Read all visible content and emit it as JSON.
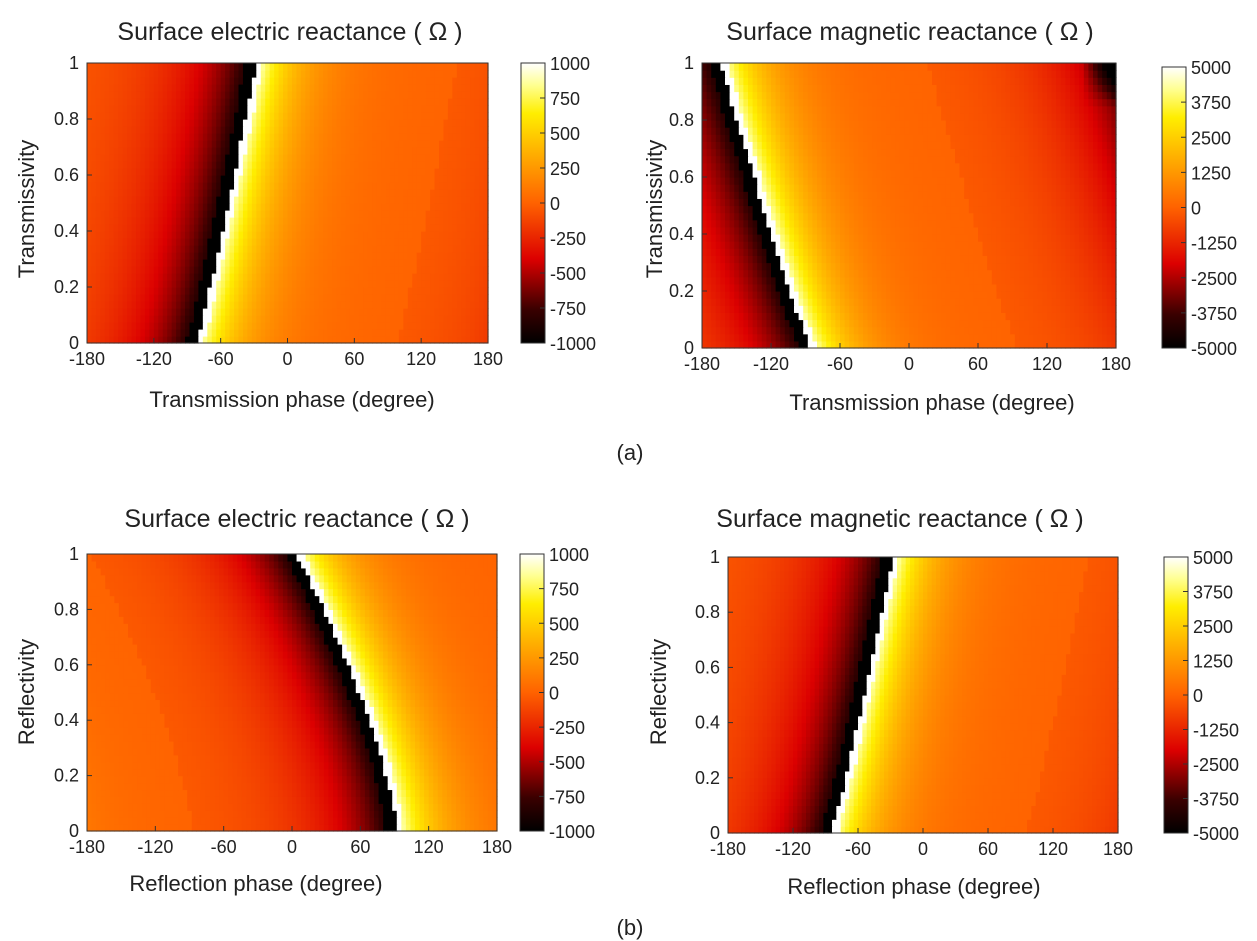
{
  "captions": [
    "(a)",
    "(b)"
  ],
  "colorbars": {
    "electric": {
      "ticks": [
        "1000",
        "750",
        "500",
        "250",
        "0",
        "-250",
        "-500",
        "-750",
        "-1000"
      ],
      "range": [
        -1000,
        1000
      ]
    },
    "magnetic": {
      "ticks": [
        "5000",
        "3750",
        "2500",
        "1250",
        "0",
        "-1250",
        "-2500",
        "-3750",
        "-5000"
      ],
      "range": [
        -5000,
        5000
      ]
    }
  },
  "colormap": {
    "stops": [
      {
        "v": 0.0,
        "color": "#000000"
      },
      {
        "v": 0.12,
        "color": "#3a0000"
      },
      {
        "v": 0.3,
        "color": "#dc0000"
      },
      {
        "v": 0.5,
        "color": "#ff6200"
      },
      {
        "v": 0.68,
        "color": "#ffb000"
      },
      {
        "v": 0.82,
        "color": "#ffee00"
      },
      {
        "v": 0.92,
        "color": "#ffff90"
      },
      {
        "v": 1.0,
        "color": "#ffffff"
      }
    ]
  },
  "chart_data": [
    {
      "type": "heatmap",
      "title": "Surface electric reactance ( Ω )",
      "xlabel": "Transmission phase (degree)",
      "ylabel": "Transmissivity",
      "xlim": [
        -180,
        180
      ],
      "ylim": [
        0,
        1
      ],
      "xticks": [
        "-180",
        "-120",
        "-60",
        "0",
        "60",
        "120",
        "180"
      ],
      "yticks": [
        "0",
        "0.2",
        "0.4",
        "0.6",
        "0.8",
        "1"
      ],
      "colorbar": "electric",
      "singularity_phase_at_y0": -82,
      "singularity_phase_at_y1": -28,
      "values_sample": [
        {
          "x": -180,
          "y": 0.5,
          "z": -250
        },
        {
          "x": -100,
          "y": 0.5,
          "z": -900
        },
        {
          "x": -40,
          "y": 0.5,
          "z": 800
        },
        {
          "x": 180,
          "y": 0.5,
          "z": 0
        }
      ]
    },
    {
      "type": "heatmap",
      "title": "Surface magnetic reactance ( Ω )",
      "xlabel": "Transmission phase (degree)",
      "ylabel": "Transmissivity",
      "xlim": [
        -180,
        180
      ],
      "ylim": [
        0,
        1
      ],
      "xticks": [
        "-180",
        "-120",
        "-60",
        "0",
        "60",
        "120",
        "180"
      ],
      "yticks": [
        "0",
        "0.2",
        "0.4",
        "0.6",
        "0.8",
        "1"
      ],
      "colorbar": "magnetic",
      "singularity_phase_at_y0": -85,
      "singularity_phase_at_y1": -164,
      "values_sample": [
        {
          "x": -180,
          "y": 0.2,
          "z": -2500
        },
        {
          "x": -110,
          "y": 0.2,
          "z": -4800
        },
        {
          "x": -60,
          "y": 0.5,
          "z": 3500
        },
        {
          "x": 180,
          "y": 1,
          "z": -5000
        }
      ]
    },
    {
      "type": "heatmap",
      "title": "Surface electric reactance ( Ω )",
      "xlabel": "Reflection phase (degree)",
      "ylabel": "Reflectivity",
      "xlim": [
        -180,
        180
      ],
      "ylim": [
        0,
        1
      ],
      "xticks": [
        "-180",
        "-120",
        "-60",
        "0",
        "60",
        "120",
        "180"
      ],
      "yticks": [
        "0",
        "0.2",
        "0.4",
        "0.6",
        "0.8",
        "1"
      ],
      "colorbar": "electric",
      "singularity_phase_at_y0": 92,
      "singularity_phase_at_y1": 4,
      "values_sample": [
        {
          "x": -180,
          "y": 0.5,
          "z": 0
        },
        {
          "x": 40,
          "y": 0.5,
          "z": -900
        },
        {
          "x": 110,
          "y": 0.5,
          "z": 700
        },
        {
          "x": 180,
          "y": 0.5,
          "z": 150
        }
      ]
    },
    {
      "type": "heatmap",
      "title": "Surface magnetic reactance ( Ω )",
      "xlabel": "Reflection phase (degree)",
      "ylabel": "Reflectivity",
      "xlim": [
        -180,
        180
      ],
      "ylim": [
        0,
        1
      ],
      "xticks": [
        "-180",
        "-120",
        "-60",
        "0",
        "60",
        "120",
        "180"
      ],
      "yticks": [
        "0",
        "0.2",
        "0.4",
        "0.6",
        "0.8",
        "1"
      ],
      "colorbar": "magnetic",
      "singularity_phase_at_y0": -85,
      "singularity_phase_at_y1": -28,
      "values_sample": [
        {
          "x": -180,
          "y": 0.5,
          "z": -1250
        },
        {
          "x": -100,
          "y": 0.5,
          "z": -4500
        },
        {
          "x": -40,
          "y": 0.5,
          "z": 3750
        },
        {
          "x": 180,
          "y": 0.5,
          "z": 0
        }
      ]
    }
  ]
}
